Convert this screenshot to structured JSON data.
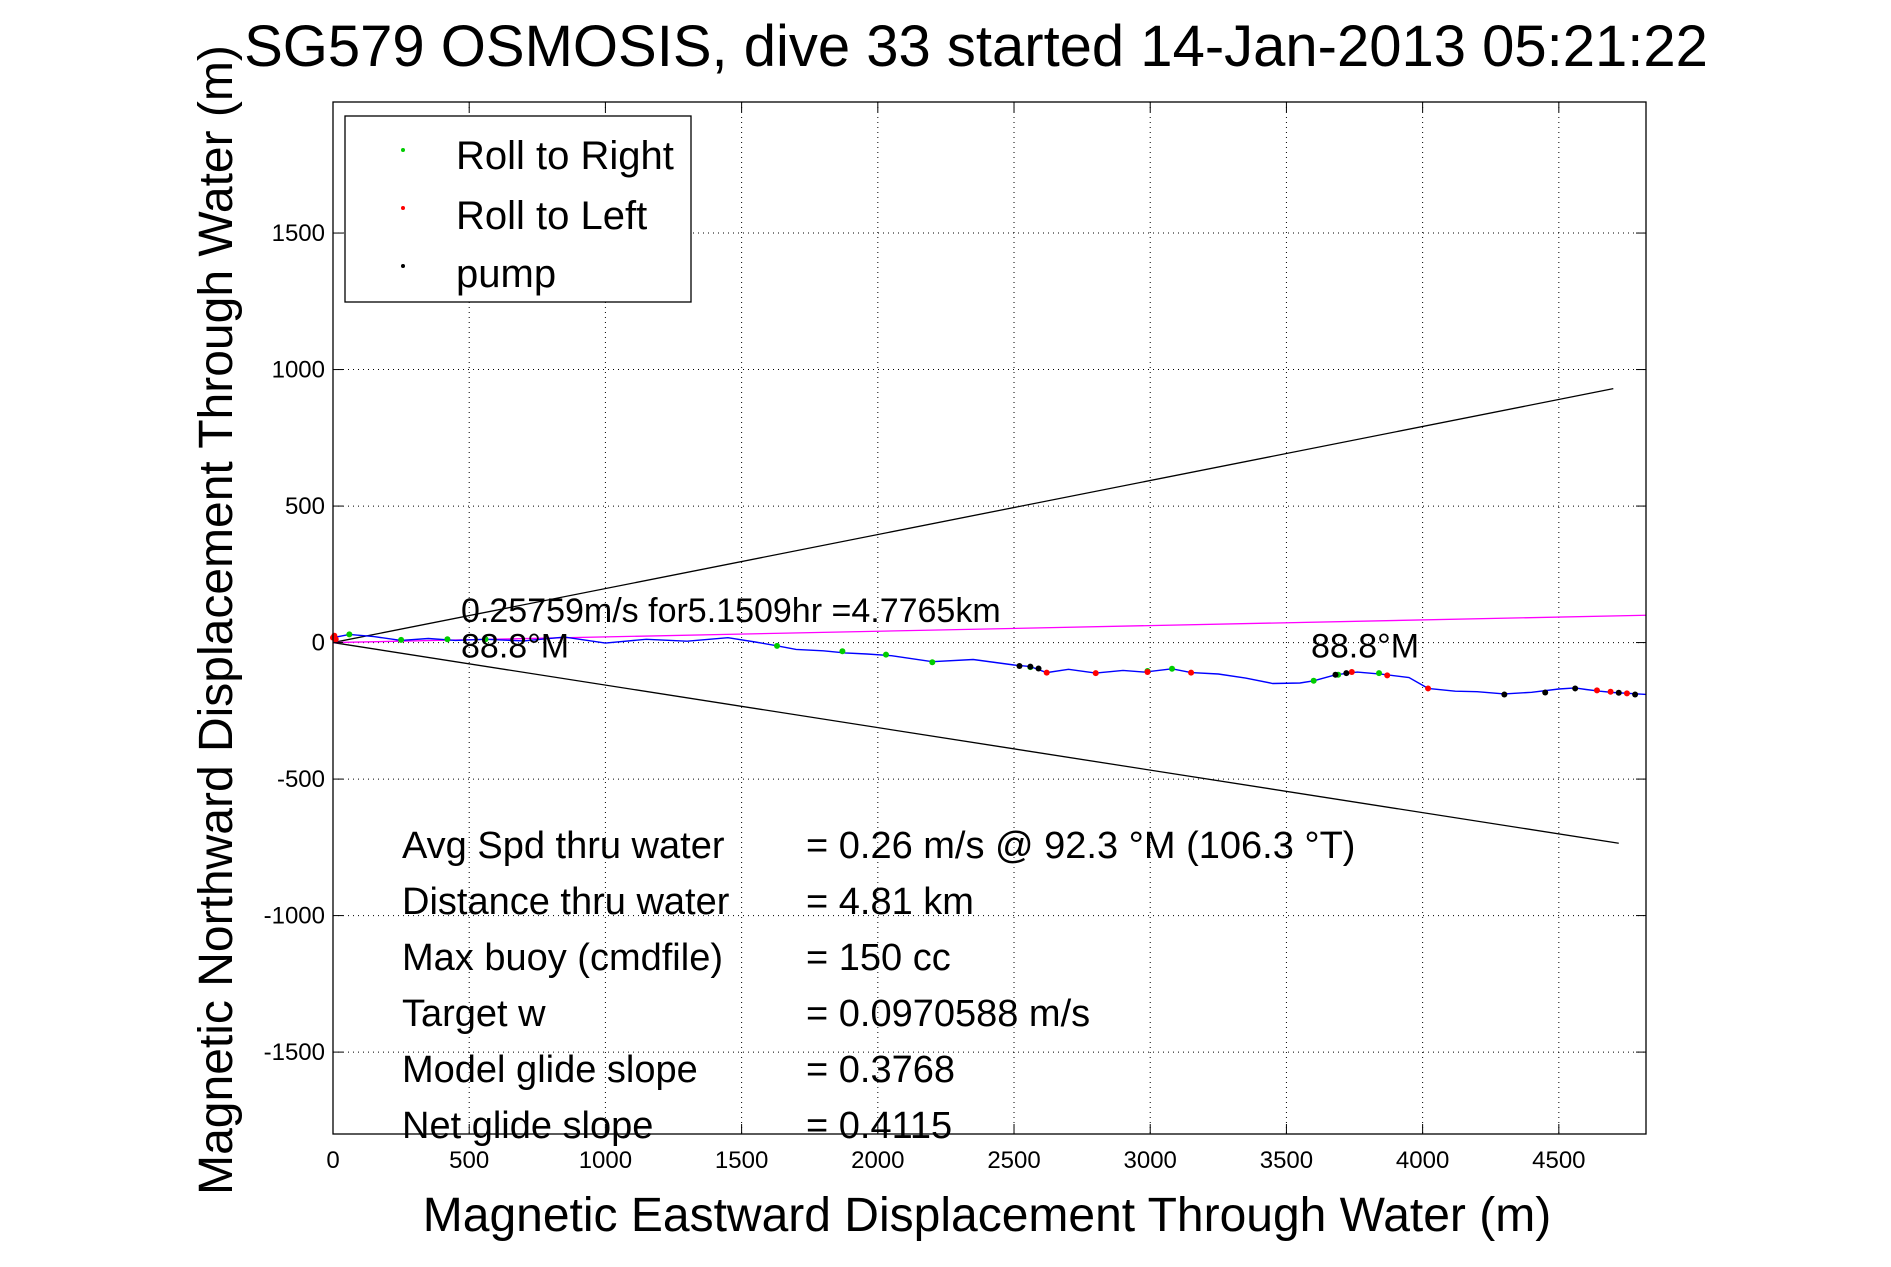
{
  "chart_data": {
    "type": "line",
    "title": "SG579 OSMOSIS, dive 33 started 14-Jan-2013 05:21:22",
    "xlabel": "Magnetic Eastward Displacement Through Water (m)",
    "ylabel": "Magnetic Northward Displacement Through Water (m)",
    "xlim": [
      0,
      4820
    ],
    "ylim": [
      -1800,
      1980
    ],
    "xticks": [
      0,
      500,
      1000,
      1500,
      2000,
      2500,
      3000,
      3500,
      4000,
      4500
    ],
    "yticks": [
      -1500,
      -1000,
      -500,
      0,
      500,
      1000,
      1500
    ],
    "grid": true,
    "legend_position": "top-left",
    "legend": [
      {
        "label": "Roll to Right",
        "color": "#00cc00"
      },
      {
        "label": "Roll to Left",
        "color": "#ff0000"
      },
      {
        "label": "pump",
        "color": "#000000"
      }
    ],
    "track": {
      "color": "#0000ff",
      "x": [
        0,
        60,
        150,
        250,
        350,
        450,
        560,
        700,
        850,
        1000,
        1150,
        1300,
        1450,
        1550,
        1620,
        1700,
        1800,
        1880,
        1960,
        2050,
        2200,
        2350,
        2500,
        2560,
        2620,
        2700,
        2800,
        2900,
        2980,
        3080,
        3150,
        3250,
        3350,
        3450,
        3550,
        3600,
        3680,
        3760,
        3850,
        3950,
        4020,
        4120,
        4200,
        4300,
        4400,
        4500,
        4560,
        4600,
        4650,
        4700,
        4760,
        4820
      ],
      "y": [
        18,
        30,
        22,
        8,
        15,
        8,
        12,
        6,
        20,
        -2,
        12,
        5,
        18,
        2,
        -10,
        -25,
        -30,
        -38,
        -42,
        -48,
        -70,
        -62,
        -82,
        -88,
        -110,
        -98,
        -112,
        -102,
        -108,
        -96,
        -110,
        -115,
        -130,
        -150,
        -148,
        -140,
        -118,
        -108,
        -116,
        -128,
        -168,
        -178,
        -180,
        -188,
        -182,
        -170,
        -166,
        -172,
        -178,
        -183,
        -186,
        -190
      ]
    },
    "event_points": {
      "roll_right": {
        "x": [
          60,
          250,
          420,
          560,
          1630,
          1870,
          2030,
          2200,
          2560,
          2990,
          3080,
          3600,
          3690,
          3840
        ],
        "y": [
          30,
          10,
          12,
          12,
          -12,
          -32,
          -44,
          -72,
          -90,
          -104,
          -96,
          -140,
          -118,
          -112
        ]
      },
      "roll_left": {
        "x": [
          0,
          5,
          10,
          2620,
          2800,
          2990,
          3150,
          3740,
          3870,
          4020,
          4640,
          4690,
          4750
        ],
        "y": [
          18,
          25,
          12,
          -110,
          -112,
          -108,
          -110,
          -108,
          -120,
          -168,
          -175,
          -180,
          -186
        ]
      },
      "pump": {
        "x": [
          2520,
          2560,
          2590,
          3680,
          3720,
          4300,
          4450,
          4560,
          4720,
          4780
        ],
        "y": [
          -86,
          -88,
          -95,
          -118,
          -112,
          -190,
          -183,
          -168,
          -184,
          -190
        ]
      }
    },
    "bound_lines": {
      "color": "#000000",
      "upper": {
        "x": [
          0,
          4700
        ],
        "y": [
          0,
          930
        ]
      },
      "lower": {
        "x": [
          0,
          4720
        ],
        "y": [
          0,
          -735
        ]
      }
    },
    "mean_line": {
      "color": "#ff00ff",
      "x": [
        0,
        4820
      ],
      "y": [
        0,
        100
      ]
    },
    "annotations": {
      "speed_text": {
        "text": "0.25759m/s for5.1509hr =4.7765km",
        "x": 470,
        "y": 75
      },
      "heading_text_1": {
        "text": "88.8°M",
        "x": 470,
        "y": -55
      },
      "heading_text_2": {
        "text": "88.8°M",
        "x": 3590,
        "y": -55
      }
    },
    "stats": [
      {
        "label": "Avg Spd thru water",
        "value": "=  0.26 m/s @  92.3 °M (106.3 °T)"
      },
      {
        "label": "Distance thru water",
        "value": "=  4.81 km"
      },
      {
        "label": "Max buoy (cmdfile)",
        "value": "= 150 cc"
      },
      {
        "label": "Target w",
        "value": "= 0.0970588 m/s"
      },
      {
        "label": "Model glide slope",
        "value": "= 0.3768"
      },
      {
        "label": "Net glide slope",
        "value": "= 0.4115"
      }
    ]
  }
}
